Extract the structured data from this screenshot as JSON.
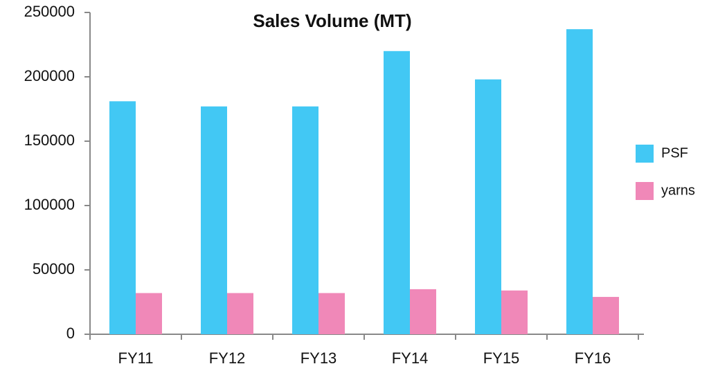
{
  "chart_data": {
    "type": "bar",
    "title": "Sales Volume (MT)",
    "categories": [
      "FY11",
      "FY12",
      "FY13",
      "FY14",
      "FY15",
      "FY16"
    ],
    "series": [
      {
        "name": "PSF",
        "color": "#42c8f4",
        "values": [
          181000,
          177000,
          177000,
          220000,
          198000,
          237000
        ]
      },
      {
        "name": "yarns",
        "color": "#f088b8",
        "values": [
          32000,
          32000,
          32000,
          35000,
          34000,
          29000
        ]
      }
    ],
    "ylim": [
      0,
      250000
    ],
    "yticks": [
      0,
      50000,
      100000,
      150000,
      200000,
      250000
    ],
    "grid": false,
    "legend": "right"
  }
}
